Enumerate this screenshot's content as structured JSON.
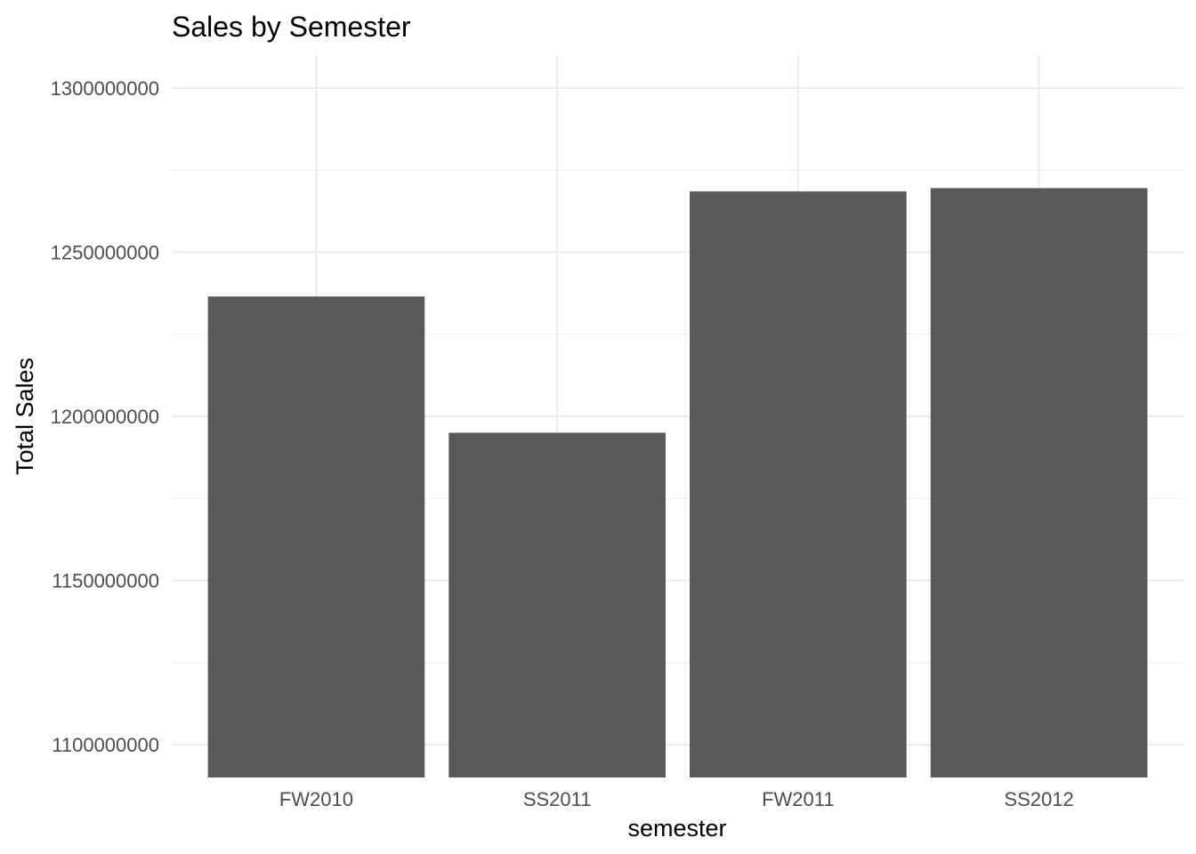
{
  "chart_data": {
    "type": "bar",
    "title": "Sales by Semester",
    "xlabel": "semester",
    "ylabel": "Total Sales",
    "categories": [
      "FW2010",
      "SS2011",
      "FW2011",
      "SS2012"
    ],
    "values": [
      1236500000,
      1195000000,
      1268500000,
      1269500000
    ],
    "ylim": [
      1090000000,
      1310000000
    ],
    "y_ticks": [
      1100000000,
      1150000000,
      1200000000,
      1250000000,
      1300000000
    ],
    "y_tick_labels": [
      "1100000000",
      "1150000000",
      "1200000000",
      "1250000000",
      "1300000000"
    ],
    "grid": true,
    "legend": "none",
    "colors": {
      "bar": "#595959",
      "grid": "#ebebeb",
      "tick_text": "#4d4d4d",
      "background": "#ffffff"
    }
  }
}
